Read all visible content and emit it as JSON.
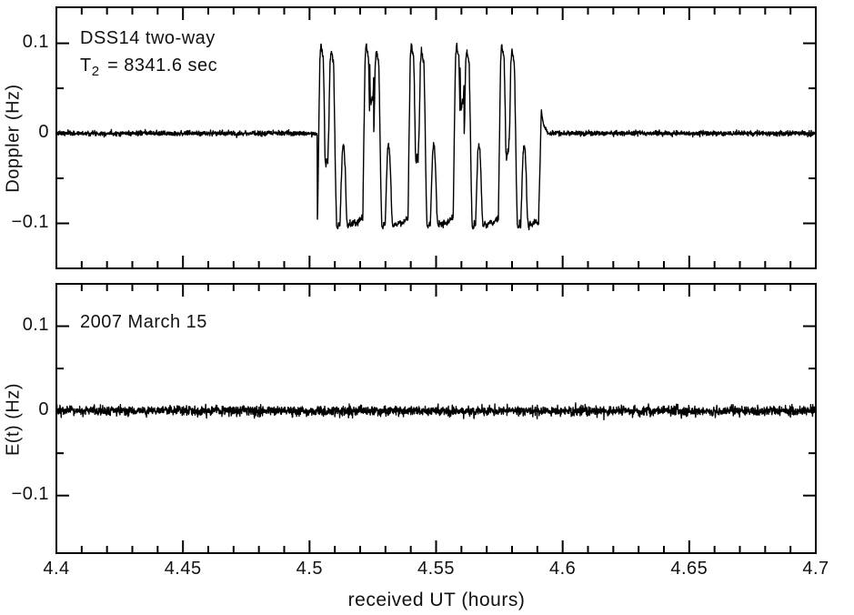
{
  "figure": {
    "background": "#ffffff",
    "ink_color": "#000000"
  },
  "chart_data": {
    "type": "line",
    "title": "",
    "xlabel": "received UT (hours)",
    "legend": "none",
    "grid": false,
    "line_color": "#000000",
    "x_range": {
      "min": 4.4,
      "max": 4.7
    },
    "x_major_tick_values": [
      4.4,
      4.45,
      4.5,
      4.55,
      4.6,
      4.65,
      4.7
    ],
    "x_major_tick_labels": [
      "4.4",
      "4.45",
      "4.5",
      "4.55",
      "4.6",
      "4.65",
      "4.7"
    ],
    "x_minor_tick_step": 0.01,
    "panels": [
      {
        "id": "doppler",
        "ylabel": "Doppler (Hz)",
        "y_range": {
          "min": -0.15,
          "max": 0.14
        },
        "y_major_tick_values": [
          0.1,
          0,
          -0.1
        ],
        "y_major_tick_labels": [
          "0.1",
          "0",
          "−0.1"
        ],
        "y_minor_tick_values": [
          0.05,
          -0.05
        ],
        "annotations": {
          "station": "DSS14 two-way",
          "t2_pre": "T",
          "t2_sub": "2",
          "t2_post": "= 8341.6 sec"
        },
        "series": {
          "name": "doppler-residual",
          "baseline": 0,
          "noise_sigma": 0.0013,
          "seed": 7,
          "echo": {
            "start": 4.503,
            "end": 4.5905,
            "cycle_length": 0.017857,
            "noise_sigma": 0.0015,
            "amplitude": 0.1,
            "cycle_valley_offsets": [
              0,
              0.07,
              0.005,
              0.065,
              0.01
            ],
            "cycle_template": [
              [
                0.0,
                -0.093
              ],
              [
                0.01,
                -0.096
              ],
              [
                0.03,
                -0.02
              ],
              [
                0.06,
                0.082
              ],
              [
                0.085,
                0.1
              ],
              [
                0.105,
                0.091
              ],
              [
                0.135,
                0.086
              ],
              [
                0.15,
                0.055
              ],
              [
                0.175,
                -0.03
              ],
              [
                0.195,
                -0.038
              ],
              [
                0.215,
                -0.028
              ],
              [
                0.235,
                -0.033
              ],
              [
                0.26,
                0.01
              ],
              [
                0.285,
                0.078
              ],
              [
                0.31,
                0.092
              ],
              [
                0.34,
                0.084
              ],
              [
                0.365,
                0.077
              ],
              [
                0.385,
                0.02
              ],
              [
                0.41,
                -0.06
              ],
              [
                0.43,
                -0.102
              ],
              [
                0.455,
                -0.106
              ],
              [
                0.48,
                -0.099
              ],
              [
                0.505,
                -0.103
              ],
              [
                0.53,
                -0.06
              ],
              [
                0.555,
                -0.022
              ],
              [
                0.575,
                -0.012
              ],
              [
                0.6,
                -0.018
              ],
              [
                0.625,
                -0.045
              ],
              [
                0.65,
                -0.09
              ],
              [
                0.675,
                -0.104
              ],
              [
                0.71,
                -0.1
              ],
              [
                0.76,
                -0.102
              ],
              [
                0.82,
                -0.098
              ],
              [
                0.88,
                -0.1
              ],
              [
                0.94,
                -0.097
              ],
              [
                0.985,
                -0.094
              ],
              [
                1.0,
                -0.093
              ]
            ],
            "tail_duration": 0.0035,
            "tail": [
              [
                0.0,
                -0.093
              ],
              [
                0.15,
                -0.04
              ],
              [
                0.3,
                0.026
              ],
              [
                0.5,
                0.012
              ],
              [
                0.75,
                0.006
              ],
              [
                1.0,
                0.002
              ]
            ]
          }
        }
      },
      {
        "id": "residual",
        "ylabel": "E(t) (Hz)",
        "y_range": {
          "min": -0.168,
          "max": 0.15
        },
        "y_major_tick_values": [
          0.1,
          0,
          -0.1
        ],
        "y_major_tick_labels": [
          "0.1",
          "0",
          "−0.1"
        ],
        "y_minor_tick_values": [
          0.05,
          -0.05
        ],
        "annotations": {
          "date": "2007 March 15"
        },
        "series": {
          "name": "fit-residual",
          "baseline": 0,
          "noise_sigma": 0.0028,
          "seed": 13,
          "echo": null
        }
      }
    ]
  }
}
